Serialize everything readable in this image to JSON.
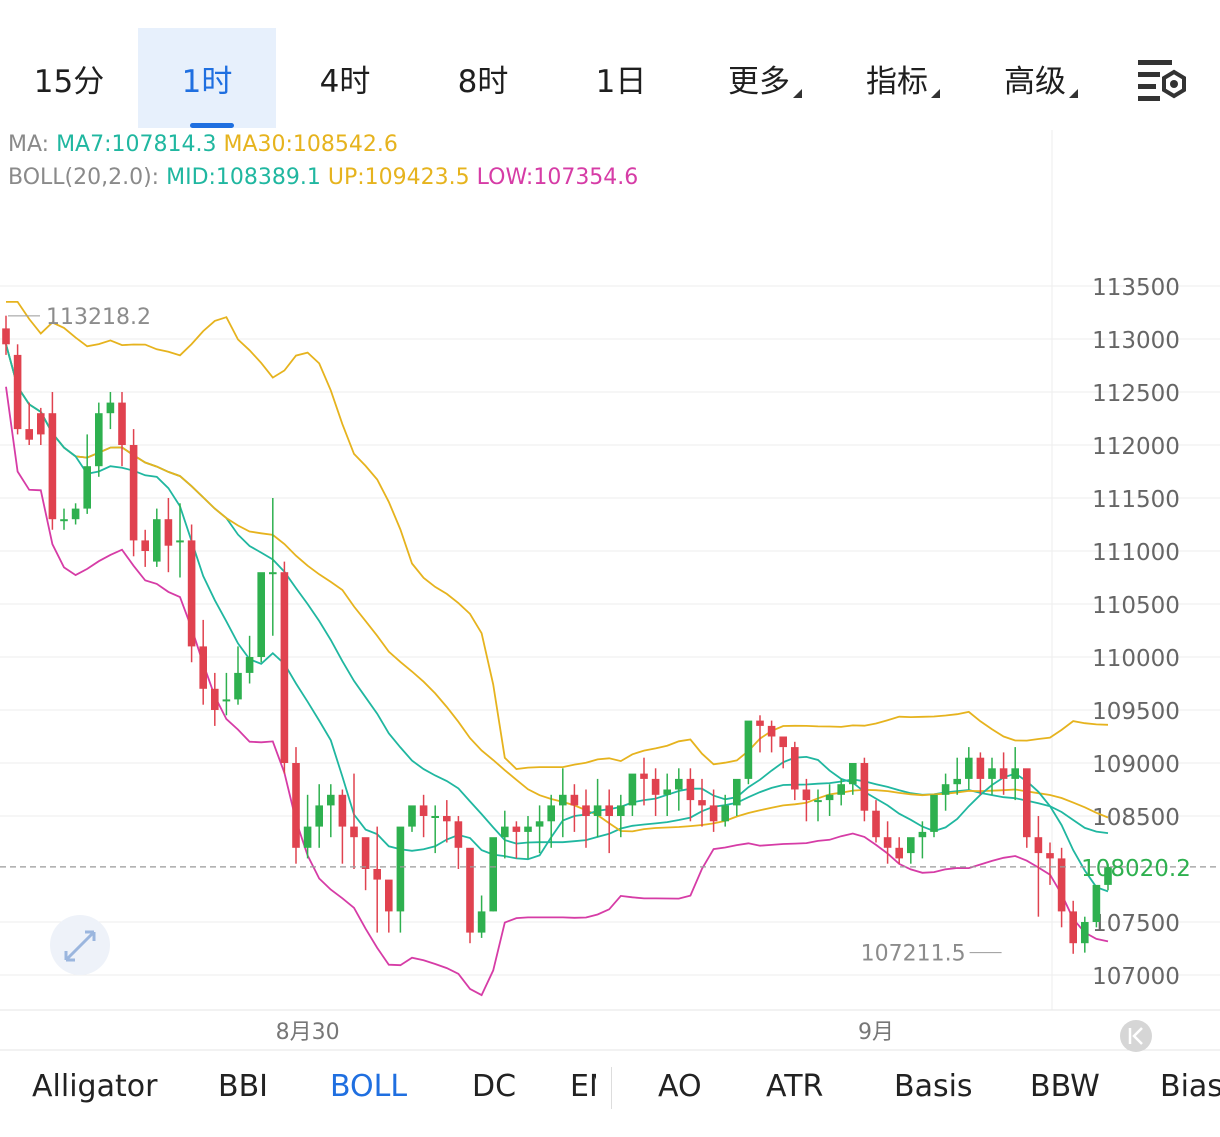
{
  "timeframes": [
    {
      "label": "15分",
      "active": false,
      "menu": false
    },
    {
      "label": "1时",
      "active": true,
      "menu": false
    },
    {
      "label": "4时",
      "active": false,
      "menu": false
    },
    {
      "label": "8时",
      "active": false,
      "menu": false
    },
    {
      "label": "1日",
      "active": false,
      "menu": false
    },
    {
      "label": "更多",
      "active": false,
      "menu": true
    },
    {
      "label": "指标",
      "active": false,
      "menu": true
    },
    {
      "label": "高级",
      "active": false,
      "menu": true
    }
  ],
  "settings_icon": "chart-settings-icon",
  "legend": {
    "ma_prefix": "MA:",
    "ma7": "MA7:107814.3",
    "ma30": "MA30:108542.6",
    "boll_prefix": "BOLL(20,2.0):",
    "mid": "MID:108389.1",
    "up": "UP:109423.5",
    "low": "LOW:107354.6"
  },
  "colors": {
    "up": "#2eb04f",
    "down": "#e0424f",
    "ma7": "#20b7a0",
    "ma30": "#e6b31e",
    "mid": "#20b7a0",
    "upper": "#e6b31e",
    "lower": "#d63ca6",
    "active": "#1f6fe0",
    "price_label": "#2eb04f"
  },
  "chart_data": {
    "type": "candlestick",
    "interval": "1时",
    "y_ticks": [
      113500,
      113000,
      112500,
      112000,
      111500,
      111000,
      110500,
      110000,
      109500,
      109000,
      108500,
      107500,
      107000
    ],
    "ylim": [
      106700,
      114100
    ],
    "x_labels": [
      {
        "index": 26,
        "label": "8月30"
      },
      {
        "index": 75,
        "label": "9月"
      }
    ],
    "current_price": "108020.2",
    "current_price_value": 108020.2,
    "annotations": [
      {
        "label": "113218.2",
        "value": 113218.2,
        "index": 0
      },
      {
        "label": "107211.5",
        "value": 107211.5,
        "index": 86
      }
    ],
    "candles": [
      [
        113100,
        113220,
        112950,
        112850
      ],
      [
        112850,
        112950,
        112150,
        112100
      ],
      [
        112150,
        112400,
        112050,
        112000
      ],
      [
        112300,
        112350,
        112100,
        112000
      ],
      [
        112300,
        112500,
        111300,
        111200
      ],
      [
        111300,
        111400,
        111300,
        111200
      ],
      [
        111300,
        111450,
        111400,
        111250
      ],
      [
        111400,
        112100,
        111800,
        111350
      ],
      [
        111800,
        112400,
        112300,
        111700
      ],
      [
        112300,
        112500,
        112400,
        112150
      ],
      [
        112400,
        112500,
        112000,
        111800
      ],
      [
        112000,
        112150,
        111100,
        110950
      ],
      [
        111100,
        111200,
        111000,
        110850
      ],
      [
        110900,
        111400,
        111300,
        110850
      ],
      [
        111300,
        111500,
        111050,
        110800
      ],
      [
        111100,
        111450,
        111100,
        110750
      ],
      [
        111100,
        111250,
        110100,
        109950
      ],
      [
        110100,
        110350,
        109700,
        109550
      ],
      [
        109700,
        109850,
        109500,
        109350
      ],
      [
        109600,
        109850,
        109600,
        109450
      ],
      [
        109600,
        110100,
        109850,
        109550
      ],
      [
        109850,
        110200,
        110000,
        109750
      ],
      [
        110000,
        110700,
        110800,
        109950
      ],
      [
        110800,
        111500,
        110800,
        110200
      ],
      [
        110800,
        110900,
        109000,
        108900
      ],
      [
        109000,
        109150,
        108200,
        108050
      ],
      [
        108200,
        108700,
        108400,
        108100
      ],
      [
        108400,
        108800,
        108600,
        108200
      ],
      [
        108600,
        108800,
        108700,
        108300
      ],
      [
        108700,
        108750,
        108400,
        108050
      ],
      [
        108400,
        108900,
        108300,
        108000
      ],
      [
        108300,
        108200,
        108000,
        107800
      ],
      [
        108000,
        108400,
        107900,
        107400
      ],
      [
        107900,
        107700,
        107600,
        107400
      ],
      [
        107600,
        108300,
        108400,
        107400
      ],
      [
        108400,
        108550,
        108600,
        108350
      ],
      [
        108600,
        108700,
        108500,
        108300
      ],
      [
        108500,
        108600,
        108500,
        108150
      ],
      [
        108500,
        108650,
        108450,
        108250
      ],
      [
        108450,
        108500,
        108200,
        108000
      ],
      [
        108200,
        108150,
        107400,
        107300
      ],
      [
        107400,
        107750,
        107600,
        107350
      ],
      [
        107600,
        108200,
        108300,
        107600
      ],
      [
        108300,
        108550,
        108400,
        108100
      ],
      [
        108400,
        108450,
        108350,
        108100
      ],
      [
        108350,
        108500,
        108400,
        108100
      ],
      [
        108400,
        108600,
        108450,
        108150
      ],
      [
        108450,
        108700,
        108600,
        108200
      ],
      [
        108600,
        108950,
        108700,
        108300
      ],
      [
        108700,
        108800,
        108600,
        108350
      ],
      [
        108600,
        108750,
        108500,
        108200
      ],
      [
        108500,
        108850,
        108600,
        108300
      ],
      [
        108600,
        108750,
        108500,
        108150
      ],
      [
        108500,
        108700,
        108600,
        108300
      ],
      [
        108600,
        108750,
        108900,
        108500
      ],
      [
        108900,
        109050,
        108850,
        108600
      ],
      [
        108850,
        108950,
        108700,
        108500
      ],
      [
        108700,
        108900,
        108750,
        108500
      ],
      [
        108750,
        108950,
        108850,
        108550
      ],
      [
        108850,
        108950,
        108650,
        108450
      ],
      [
        108650,
        108850,
        108600,
        108400
      ],
      [
        108600,
        108750,
        108450,
        108350
      ],
      [
        108450,
        108700,
        108600,
        108400
      ],
      [
        108600,
        108650,
        108850,
        108500
      ],
      [
        108850,
        109300,
        109400,
        108800
      ],
      [
        109400,
        109450,
        109350,
        109100
      ],
      [
        109350,
        109400,
        109250,
        109100
      ],
      [
        109250,
        109150,
        109150,
        108950
      ],
      [
        109150,
        109200,
        108750,
        108650
      ],
      [
        108750,
        108850,
        108650,
        108450
      ],
      [
        108650,
        108750,
        108650,
        108450
      ],
      [
        108650,
        108800,
        108700,
        108500
      ],
      [
        108700,
        108850,
        108800,
        108600
      ],
      [
        108800,
        108900,
        109000,
        108700
      ],
      [
        109000,
        109050,
        108550,
        108450
      ],
      [
        108550,
        108650,
        108300,
        108250
      ],
      [
        108300,
        108450,
        108200,
        108050
      ],
      [
        108200,
        108300,
        108100,
        108050
      ],
      [
        108150,
        108250,
        108300,
        108050
      ],
      [
        108300,
        108450,
        108350,
        108100
      ],
      [
        108350,
        108650,
        108700,
        108300
      ],
      [
        108700,
        108900,
        108800,
        108550
      ],
      [
        108800,
        109050,
        108850,
        108700
      ],
      [
        108850,
        109150,
        109050,
        108750
      ],
      [
        109050,
        109100,
        108850,
        108700
      ],
      [
        108850,
        109050,
        108950,
        108700
      ],
      [
        108950,
        109100,
        108850,
        108700
      ],
      [
        108850,
        109150,
        108950,
        108650
      ],
      [
        108950,
        108900,
        108300,
        108200
      ],
      [
        108300,
        108500,
        108150,
        107550
      ],
      [
        108150,
        108250,
        108100,
        107850
      ],
      [
        108100,
        108200,
        107600,
        107450
      ],
      [
        107600,
        107700,
        107300,
        107200
      ],
      [
        107300,
        107550,
        107500,
        107211
      ],
      [
        107500,
        107800,
        107850,
        107450
      ],
      [
        107850,
        108050,
        108020,
        107800
      ]
    ]
  },
  "indicators": [
    "Alligator",
    "BBI",
    "BOLL",
    "DC",
    "EMA",
    "AO",
    "ATR",
    "Basis",
    "BBW",
    "Bias"
  ],
  "active_indicator": "BOLL",
  "expand_icon": "expand-arrows-icon",
  "scroll_icon": "scroll-to-latest-icon"
}
